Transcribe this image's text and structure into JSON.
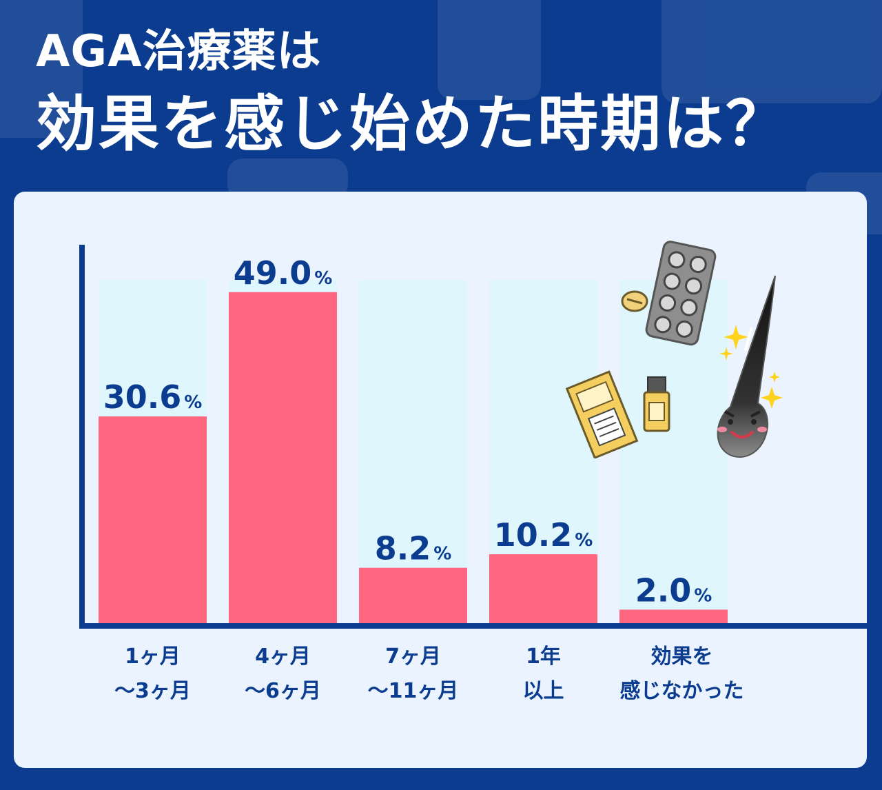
{
  "header": {
    "line1": "AGA治療薬は",
    "line2": "効果を感じ始めた時期は？"
  },
  "chart_data": {
    "type": "bar",
    "categories": [
      "1ヶ月\n〜3ヶ月",
      "4ヶ月\n〜6ヶ月",
      "7ヶ月\n〜11ヶ月",
      "1年\n以上",
      "効果を\n感じなかった"
    ],
    "values": [
      30.6,
      49.0,
      8.2,
      10.2,
      2.0
    ],
    "value_labels": [
      "30.6",
      "49.0",
      "8.2",
      "10.2",
      "2.0"
    ],
    "unit": "%",
    "ylim": [
      0,
      50
    ],
    "colors": {
      "bar": "#ff667f",
      "track": "#dff6fd",
      "axis": "#0b3c8f",
      "label": "#0b3c8f"
    }
  },
  "illustrations": [
    "pill-sheet-icon",
    "tablet-icon",
    "medicine-box-icon",
    "bottle-icon",
    "hair-character-icon",
    "sparkle-icon"
  ]
}
